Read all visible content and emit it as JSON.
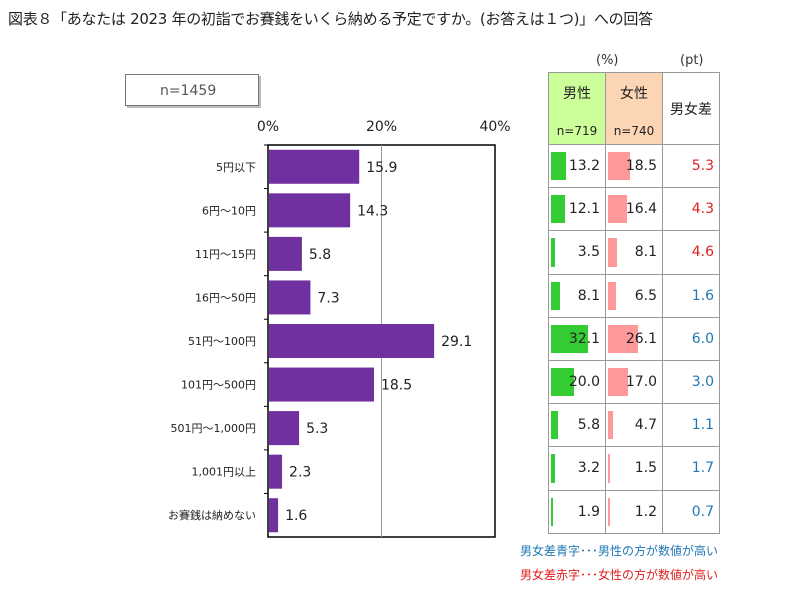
{
  "title": "図表８「あなたは 2023 年の初詣でお賽銭をいくら納める予定ですか。(お答えは１つ)」への回答",
  "sample_label": "n=1459",
  "colors": {
    "bar": "#7030a0",
    "male_bar": "#33cc33",
    "female_bar": "#ff9999",
    "male_header": "#ccff99",
    "female_header": "#fcd5b4",
    "diff_blue": "#1f78b4",
    "diff_red": "#e02020"
  },
  "chart_data": {
    "type": "bar",
    "orientation": "horizontal",
    "categories": [
      "5円以下",
      "6円～10円",
      "11円～15円",
      "16円～50円",
      "51円～100円",
      "101円～500円",
      "501円～1,000円",
      "1,001円以上",
      "お賽銭は納めない"
    ],
    "values": [
      15.9,
      14.3,
      5.8,
      7.3,
      29.1,
      18.5,
      5.3,
      2.3,
      1.6
    ],
    "value_labels": [
      "15.9",
      "14.3",
      "5.8",
      "7.3",
      "29.1",
      "18.5",
      "5.3",
      "2.3",
      "1.6"
    ],
    "xlim": [
      0,
      40
    ],
    "xticks": [
      "0%",
      "20%",
      "40%"
    ],
    "title": "",
    "xlabel": "",
    "ylabel": ""
  },
  "table": {
    "unit_pct": "(%)",
    "unit_pt": "(pt)",
    "male_header": "男性",
    "male_n": "n=719",
    "female_header": "女性",
    "female_n": "n=740",
    "diff_header": "男女差",
    "male": [
      13.2,
      12.1,
      3.5,
      8.1,
      32.1,
      20.0,
      5.8,
      3.2,
      1.9
    ],
    "male_labels": [
      "13.2",
      "12.1",
      "3.5",
      "8.1",
      "32.1",
      "20.0",
      "5.8",
      "3.2",
      "1.9"
    ],
    "female": [
      18.5,
      16.4,
      8.1,
      6.5,
      26.1,
      17.0,
      4.7,
      1.5,
      1.2
    ],
    "female_labels": [
      "18.5",
      "16.4",
      "8.1",
      "6.5",
      "26.1",
      "17.0",
      "4.7",
      "1.5",
      "1.2"
    ],
    "diff_labels": [
      "5.3",
      "4.3",
      "4.6",
      "1.6",
      "6.0",
      "3.0",
      "1.1",
      "1.7",
      "0.7"
    ],
    "diff_colors": [
      "red",
      "red",
      "red",
      "blue",
      "blue",
      "blue",
      "blue",
      "blue",
      "blue"
    ]
  },
  "legend": {
    "blue": "男女差青字･･･男性の方が数値が高い",
    "red": "男女差赤字･･･女性の方が数値が高い"
  }
}
